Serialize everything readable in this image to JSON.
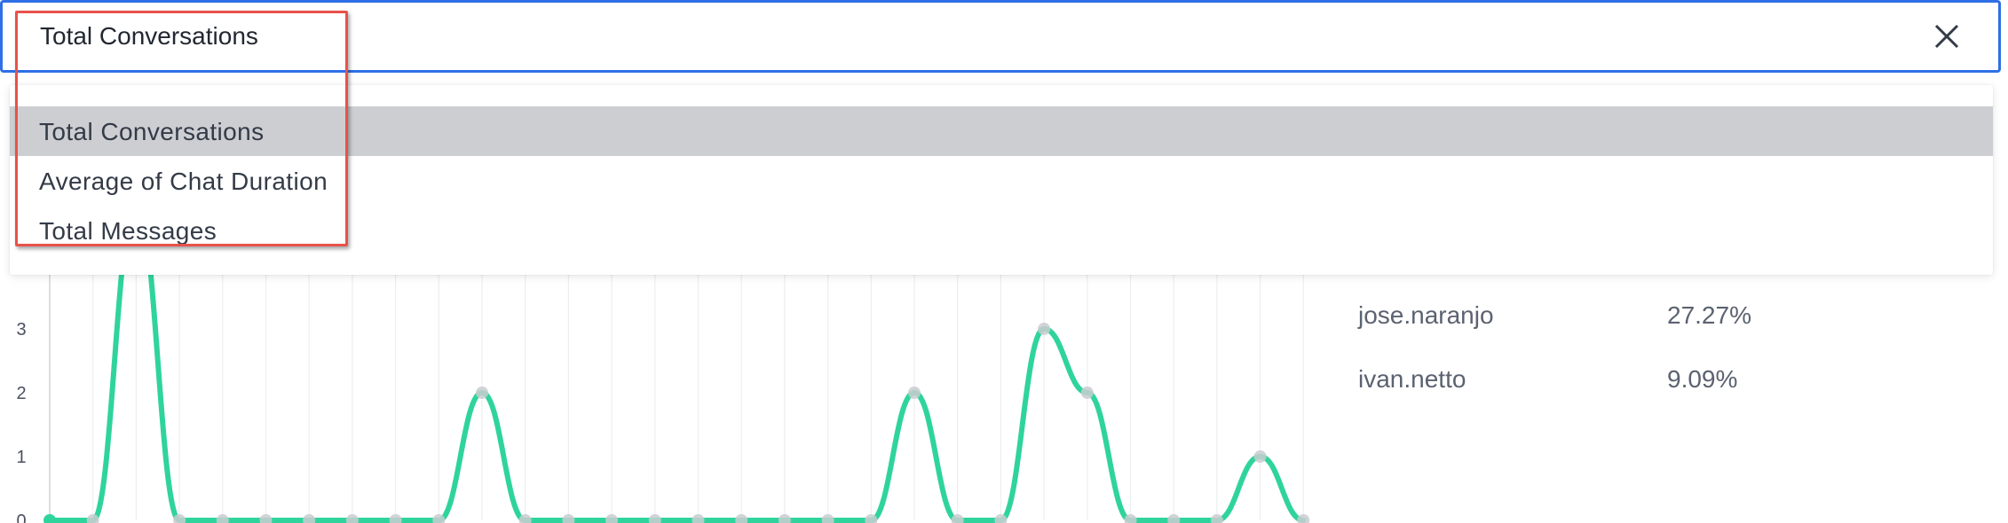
{
  "select": {
    "value": "Total Conversations"
  },
  "dropdown": {
    "options": [
      {
        "label": "Total Conversations",
        "active": true
      },
      {
        "label": "Average of Chat Duration",
        "active": false
      },
      {
        "label": "Total Messages",
        "active": false
      }
    ]
  },
  "stats": [
    {
      "name": "jose.naranjo",
      "value": "27.27%"
    },
    {
      "name": "ivan.netto",
      "value": "9.09%"
    }
  ],
  "icons": {
    "close": "close-icon"
  },
  "colors": {
    "accent": "#2f6fe6",
    "series": "#2fd49c",
    "highlight": "#e8524a",
    "active_option": "#cdced2"
  },
  "chart_data": {
    "type": "line",
    "y_ticks": [
      "0",
      "1",
      "2",
      "3"
    ],
    "ylim": [
      0,
      5
    ],
    "series": [
      {
        "values": [
          0,
          0,
          5,
          0,
          0,
          0,
          0,
          0,
          0,
          0,
          2,
          0,
          0,
          0,
          0,
          0,
          0,
          0,
          0,
          0,
          2,
          0,
          0,
          3,
          2,
          0,
          0,
          0,
          1,
          0
        ]
      }
    ]
  }
}
